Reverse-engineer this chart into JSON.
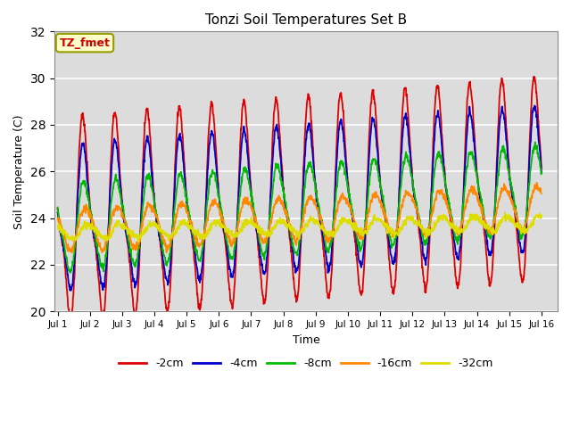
{
  "title": "Tonzi Soil Temperatures Set B",
  "xlabel": "Time",
  "ylabel": "Soil Temperature (C)",
  "ylim": [
    20,
    32
  ],
  "xlim_days": 15.5,
  "xtick_labels": [
    "Jul 1",
    "Jul 2",
    "Jul 3",
    "Jul 4",
    "Jul 5",
    "Jul 6",
    "Jul 7",
    "Jul 8",
    "Jul 9",
    "Jul 10",
    "Jul 11",
    "Jul 12",
    "Jul 13",
    "Jul 14",
    "Jul 15",
    "Jul 16"
  ],
  "annotation_text": "TZ_fmet",
  "annotation_color": "#cc0000",
  "annotation_bg": "#ffffcc",
  "annotation_border": "#999900",
  "bg_color": "#dcdcdc",
  "plot_bg": "#dcdcdc",
  "series": {
    "-2cm": {
      "color": "#dd0000",
      "amp1": 3.8,
      "amp2": 1.2,
      "mean_s": 23.8,
      "mean_e": 25.5,
      "phase1": 0.58,
      "phase2": 1.1,
      "lag": 0.0
    },
    "-4cm": {
      "color": "#0000cc",
      "amp1": 2.8,
      "amp2": 0.8,
      "mean_s": 23.8,
      "mean_e": 25.5,
      "phase1": 0.62,
      "phase2": 1.15,
      "lag": 0.04
    },
    "-8cm": {
      "color": "#00bb00",
      "amp1": 1.8,
      "amp2": 0.3,
      "mean_s": 23.6,
      "mean_e": 25.2,
      "phase1": 0.7,
      "phase2": 1.2,
      "lag": 0.1
    },
    "-16cm": {
      "color": "#ff8800",
      "amp1": 0.9,
      "amp2": 0.1,
      "mean_s": 23.5,
      "mean_e": 24.5,
      "phase1": 0.85,
      "phase2": 1.3,
      "lag": 0.22
    },
    "-32cm": {
      "color": "#dddd00",
      "amp1": 0.3,
      "amp2": 0.05,
      "mean_s": 23.4,
      "mean_e": 23.8,
      "phase1": 1.1,
      "phase2": 1.6,
      "lag": 0.4
    }
  },
  "linewidth": 1.3,
  "grid_color": "#ffffff",
  "yticks": [
    20,
    22,
    24,
    26,
    28,
    30,
    32
  ]
}
